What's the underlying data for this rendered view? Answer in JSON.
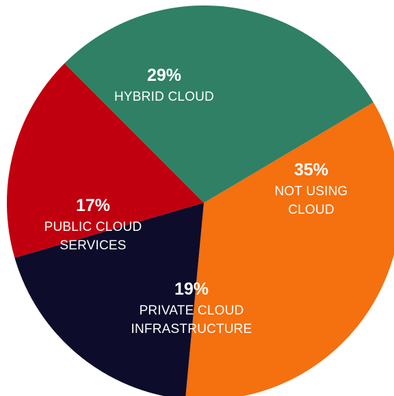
{
  "chart_data": {
    "type": "pie",
    "slices": [
      {
        "percent": 35,
        "percent_label": "35%",
        "label_lines": [
          "NOT USING",
          "CLOUD"
        ],
        "color": "#f5700f"
      },
      {
        "percent": 19,
        "percent_label": "19%",
        "label_lines": [
          "PRIVATE CLOUD",
          "INFRASTRUCTURE"
        ],
        "color": "#0d0c2b"
      },
      {
        "percent": 17,
        "percent_label": "17%",
        "label_lines": [
          "PUBLIC CLOUD",
          "SERVICES"
        ],
        "color": "#c1000f"
      },
      {
        "percent": 29,
        "percent_label": "29%",
        "label_lines": [
          "HYBRID CLOUD"
        ],
        "color": "#2f8065"
      }
    ]
  }
}
